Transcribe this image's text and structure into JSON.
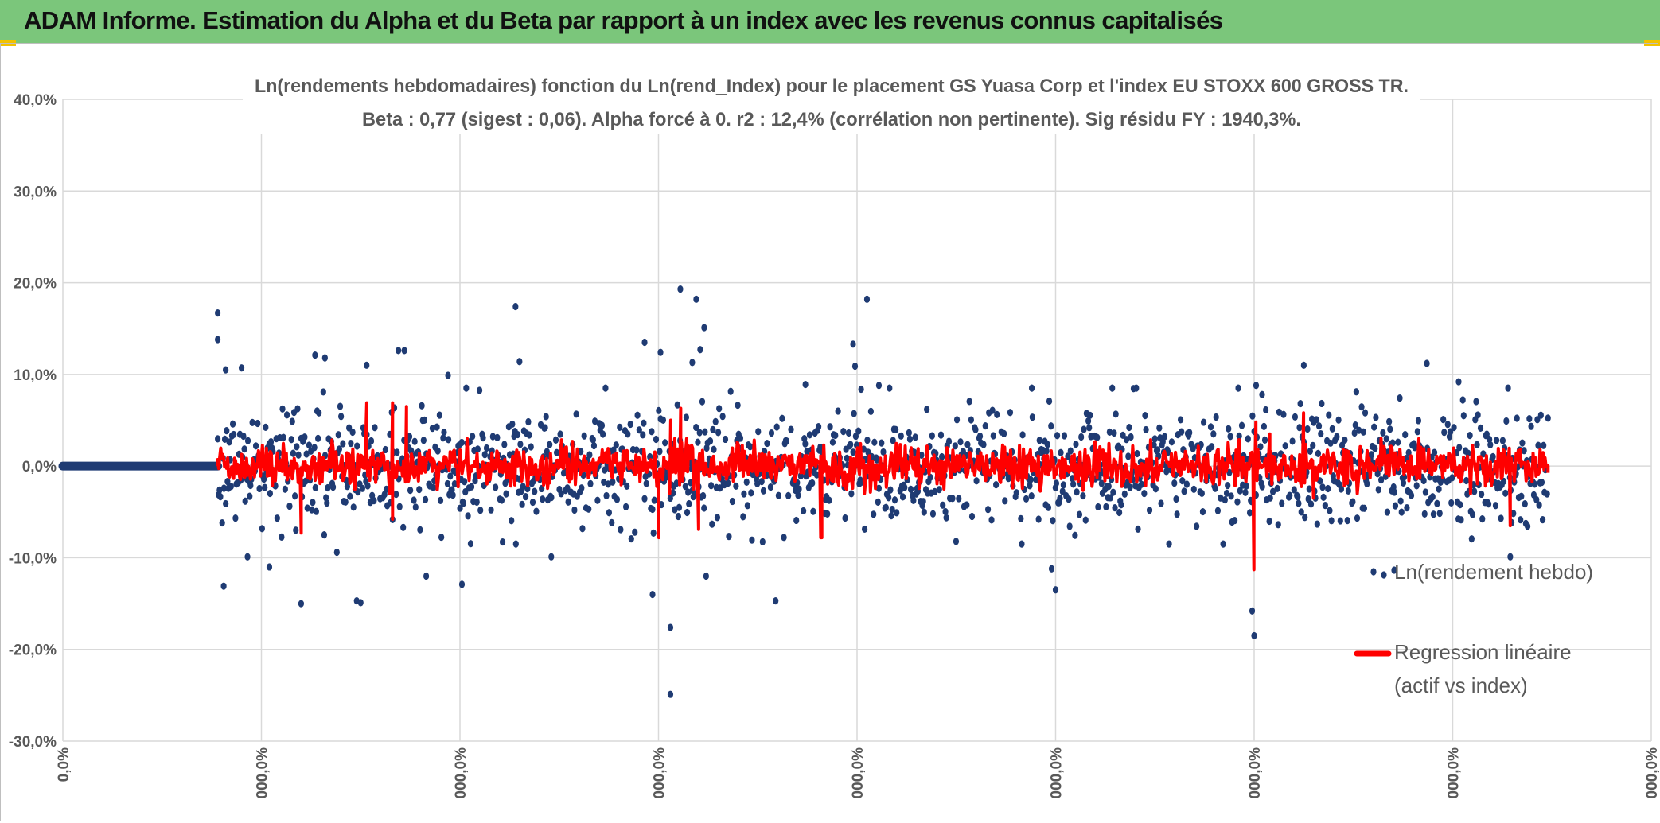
{
  "header": {
    "title": "ADAM Informe. Estimation du Alpha et du Beta par rapport à un index avec les revenus connus capitalisés"
  },
  "colors": {
    "banner": "#7bc67b",
    "scatter": "#1f3b73",
    "regression": "#ff0000",
    "grid": "#d9d9d9",
    "corner_marker": "#f2c200"
  },
  "chart_data": {
    "type": "scatter",
    "title_line1": "Ln(rendements hebdomadaires) fonction du Ln(rend_Index) pour le placement GS Yuasa Corp et l'index EU STOXX 600 GROSS TR.",
    "title_line2": "Beta : 0,77 (sigest : 0,06). Alpha forcé à 0. r2 : 12,4% (corrélation non pertinente). Sig résidu FY : 1940,3%.",
    "ylim": [
      -0.3,
      0.4
    ],
    "y_ticks": [
      0.4,
      0.3,
      0.2,
      0.1,
      0.0,
      -0.1,
      -0.2,
      -0.3
    ],
    "y_tick_labels": [
      "40,0%",
      "30,0%",
      "20,0%",
      "10,0%",
      "0,0%",
      "-10,0%",
      "-20,0%",
      "-30,0%"
    ],
    "xlim": [
      0,
      800
    ],
    "x_ticks": [
      0,
      100,
      200,
      300,
      400,
      500,
      600,
      700,
      800
    ],
    "x_tick_labels": [
      "0,0%",
      "000,0%",
      "000,0%",
      "000,0%",
      "000,0%",
      "000,0%",
      "000,0%",
      "000,0%",
      "000,0%"
    ],
    "grid": true,
    "legend": "right",
    "flat_segment_end_x": 78,
    "data_range_x": [
      78,
      748
    ],
    "series": [
      {
        "name": "Ln(rendement hebdo)",
        "style": "markers",
        "notable_points": [
          [
            78,
            0.167
          ],
          [
            78,
            0.138
          ],
          [
            81,
            -0.131
          ],
          [
            82,
            0.105
          ],
          [
            90,
            0.107
          ],
          [
            93,
            -0.099
          ],
          [
            104,
            -0.11
          ],
          [
            120,
            -0.15
          ],
          [
            127,
            0.121
          ],
          [
            132,
            0.118
          ],
          [
            138,
            -0.094
          ],
          [
            148,
            -0.147
          ],
          [
            150,
            -0.149
          ],
          [
            153,
            0.11
          ],
          [
            169,
            0.126
          ],
          [
            172,
            0.126
          ],
          [
            183,
            -0.12
          ],
          [
            194,
            0.099
          ],
          [
            201,
            -0.129
          ],
          [
            228,
            0.174
          ],
          [
            230,
            0.114
          ],
          [
            246,
            -0.099
          ],
          [
            293,
            0.135
          ],
          [
            297,
            -0.14
          ],
          [
            301,
            0.124
          ],
          [
            306,
            -0.176
          ],
          [
            306,
            -0.249
          ],
          [
            311,
            0.193
          ],
          [
            317,
            0.113
          ],
          [
            319,
            0.182
          ],
          [
            321,
            0.127
          ],
          [
            323,
            0.151
          ],
          [
            324,
            -0.12
          ],
          [
            359,
            -0.147
          ],
          [
            374,
            0.089
          ],
          [
            398,
            0.133
          ],
          [
            399,
            0.109
          ],
          [
            405,
            0.182
          ],
          [
            411,
            0.088
          ],
          [
            488,
            0.085
          ],
          [
            498,
            -0.112
          ],
          [
            500,
            -0.135
          ],
          [
            599,
            -0.158
          ],
          [
            600,
            -0.185
          ],
          [
            601,
            0.088
          ],
          [
            604,
            0.078
          ],
          [
            625,
            0.11
          ],
          [
            687,
            0.112
          ],
          [
            703,
            0.092
          ],
          [
            729,
            -0.099
          ]
        ]
      },
      {
        "name": "Regression linéaire\n(actif vs index)",
        "style": "line",
        "slope_vs_index": 0.77,
        "notable_points": [
          [
            78,
            0.0
          ],
          [
            120,
            -0.073
          ],
          [
            153,
            0.069
          ],
          [
            166,
            0.069
          ],
          [
            166,
            -0.058
          ],
          [
            173,
            0.065
          ],
          [
            300,
            -0.078
          ],
          [
            306,
            0.05
          ],
          [
            311,
            0.063
          ],
          [
            320,
            -0.069
          ],
          [
            382,
            -0.078
          ],
          [
            600,
            -0.113
          ],
          [
            601,
            0.048
          ],
          [
            608,
            0.035
          ],
          [
            625,
            0.058
          ],
          [
            630,
            -0.035
          ],
          [
            729,
            -0.065
          ],
          [
            748,
            0.0
          ]
        ]
      }
    ]
  }
}
